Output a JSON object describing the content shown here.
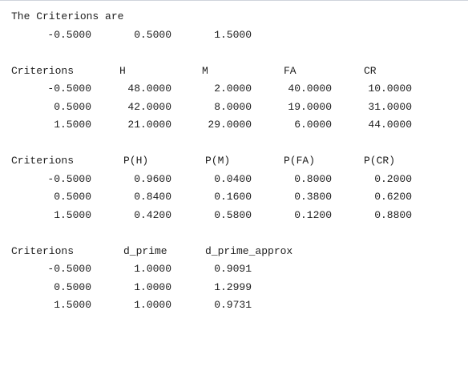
{
  "title_line": "The Criterions are",
  "criterions_list": [
    "-0.5000",
    "0.5000",
    "1.5000"
  ],
  "table1": {
    "headers": [
      "Criterions",
      "H",
      "M",
      "FA",
      "CR"
    ],
    "rows": [
      [
        "-0.5000",
        "48.0000",
        "2.0000",
        "40.0000",
        "10.0000"
      ],
      [
        "0.5000",
        "42.0000",
        "8.0000",
        "19.0000",
        "31.0000"
      ],
      [
        "1.5000",
        "21.0000",
        "29.0000",
        "6.0000",
        "44.0000"
      ]
    ]
  },
  "table2": {
    "headers": [
      "Criterions",
      "P(H)",
      "P(M)",
      "P(FA)",
      "P(CR)"
    ],
    "rows": [
      [
        "-0.5000",
        "0.9600",
        "0.0400",
        "0.8000",
        "0.2000"
      ],
      [
        "0.5000",
        "0.8400",
        "0.1600",
        "0.3800",
        "0.6200"
      ],
      [
        "1.5000",
        "0.4200",
        "0.5800",
        "0.1200",
        "0.8800"
      ]
    ]
  },
  "table3": {
    "headers": [
      "Criterions",
      "d_prime",
      "d_prime_approx"
    ],
    "rows": [
      [
        "-0.5000",
        "1.0000",
        "0.9091"
      ],
      [
        "0.5000",
        "1.0000",
        "1.2999"
      ],
      [
        "1.5000",
        "1.0000",
        "0.9731"
      ]
    ]
  }
}
